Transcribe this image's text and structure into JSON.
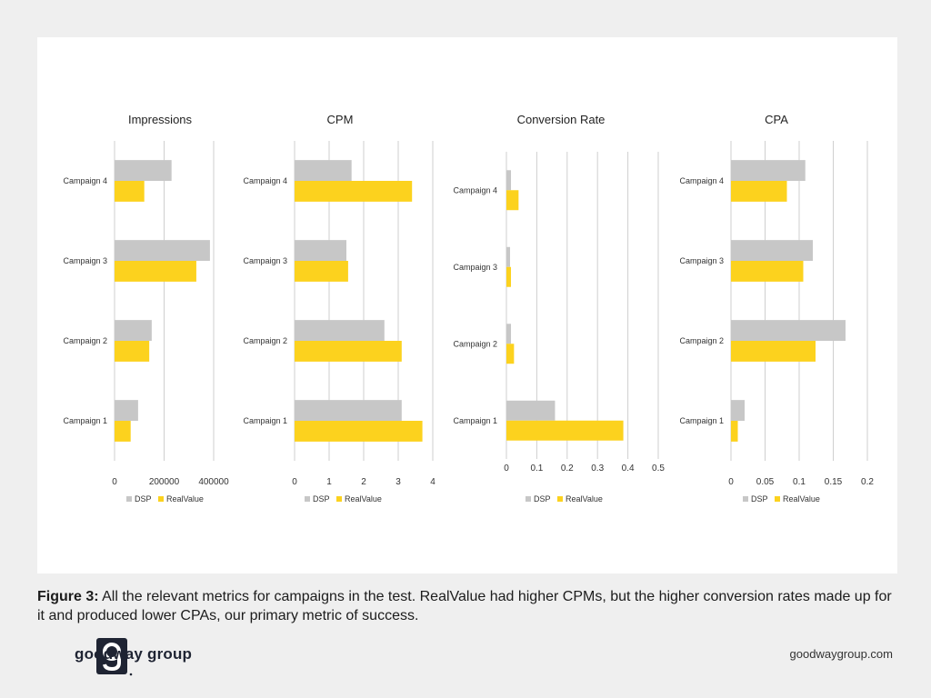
{
  "caption": {
    "label": "Figure 3:",
    "text": " All the relevant metrics for campaigns in the test. RealValue had higher CPMs, but the higher conversion rates made up for it and produced lower CPAs, our primary metric of success."
  },
  "brand": {
    "name": "goodway group",
    "site": "goodwaygroup.com"
  },
  "colors": {
    "dsp": "#c7c7c7",
    "realvalue": "#fcd21e",
    "grid": "#cfcfcf",
    "brand_navy": "#1f2433"
  },
  "chart_data": [
    {
      "type": "bar",
      "orientation": "horizontal",
      "title": "Impressions",
      "categories": [
        "Campaign 1",
        "Campaign 2",
        "Campaign 3",
        "Campaign 4"
      ],
      "series": [
        {
          "name": "DSP",
          "values": [
            95000,
            150000,
            385000,
            230000
          ]
        },
        {
          "name": "RealValue",
          "values": [
            65000,
            140000,
            330000,
            120000
          ]
        }
      ],
      "xlim": [
        0,
        400000
      ],
      "ticks": [
        0,
        200000,
        400000
      ],
      "tick_labels": [
        "0",
        "200000",
        "400000"
      ],
      "grid": true,
      "legend": "bottom"
    },
    {
      "type": "bar",
      "orientation": "horizontal",
      "title": "CPM",
      "categories": [
        "Campaign 1",
        "Campaign 2",
        "Campaign 3",
        "Campaign 4"
      ],
      "series": [
        {
          "name": "DSP",
          "values": [
            3.1,
            2.6,
            1.5,
            1.65
          ]
        },
        {
          "name": "RealValue",
          "values": [
            3.7,
            3.1,
            1.55,
            3.4
          ]
        }
      ],
      "xlim": [
        0,
        4
      ],
      "ticks": [
        0,
        1,
        2,
        3,
        4
      ],
      "tick_labels": [
        "0",
        "1",
        "2",
        "3",
        "4"
      ],
      "grid": true,
      "legend": "bottom"
    },
    {
      "type": "bar",
      "orientation": "horizontal",
      "title": "Conversion Rate",
      "categories": [
        "Campaign 1",
        "Campaign 2",
        "Campaign 3",
        "Campaign 4"
      ],
      "series": [
        {
          "name": "DSP",
          "values": [
            0.16,
            0.015,
            0.012,
            0.015
          ]
        },
        {
          "name": "RealValue",
          "values": [
            0.385,
            0.025,
            0.015,
            0.04
          ]
        }
      ],
      "xlim": [
        0,
        0.5
      ],
      "ticks": [
        0,
        0.1,
        0.2,
        0.3,
        0.4,
        0.5
      ],
      "tick_labels": [
        "0",
        "0.1",
        "0.2",
        "0.3",
        "0.4",
        "0.5"
      ],
      "grid": true,
      "legend": "bottom"
    },
    {
      "type": "bar",
      "orientation": "horizontal",
      "title": "CPA",
      "categories": [
        "Campaign 1",
        "Campaign 2",
        "Campaign 3",
        "Campaign 4"
      ],
      "series": [
        {
          "name": "DSP",
          "values": [
            0.02,
            0.168,
            0.12,
            0.109
          ]
        },
        {
          "name": "RealValue",
          "values": [
            0.01,
            0.124,
            0.106,
            0.082
          ]
        }
      ],
      "xlim": [
        0,
        0.2
      ],
      "ticks": [
        0,
        0.05,
        0.1,
        0.15,
        0.2
      ],
      "tick_labels": [
        "0",
        "0.05",
        "0.1",
        "0.15",
        "0.2"
      ],
      "grid": true,
      "legend": "bottom"
    }
  ]
}
